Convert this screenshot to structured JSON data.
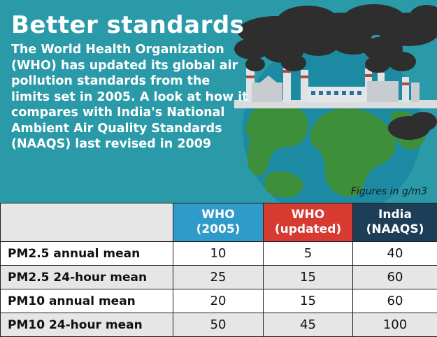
{
  "title": "Better standards",
  "description": "The World Health Organization (WHO) has updated its global air pollution standards from the limits set in 2005. A look at how it compares with India's National Ambient Air Quality Standards (NAAQS) last revised in 2009",
  "units_note": "Figures in g/m3",
  "colors": {
    "panel": "#2a9aa8",
    "who_2005": "#2f9bcb",
    "who_updated": "#d63a31",
    "india": "#1d3e57",
    "row_shade": "#e6e6e6"
  },
  "illustration": {
    "icons": [
      "smoke-cloud-icon",
      "factory-icon",
      "globe-icon"
    ]
  },
  "table": {
    "headers": [
      {
        "line1": "WHO",
        "line2": "(2005)"
      },
      {
        "line1": "WHO",
        "line2": "(updated)"
      },
      {
        "line1": "India",
        "line2": "(NAAQS)"
      }
    ],
    "rows": [
      {
        "label": "PM2.5 annual mean",
        "values": [
          "10",
          "5",
          "40"
        ]
      },
      {
        "label": "PM2.5 24-hour mean",
        "values": [
          "25",
          "15",
          "60"
        ]
      },
      {
        "label": "PM10 annual mean",
        "values": [
          "20",
          "15",
          "60"
        ]
      },
      {
        "label": "PM10 24-hour mean",
        "values": [
          "50",
          "45",
          "100"
        ]
      }
    ]
  }
}
